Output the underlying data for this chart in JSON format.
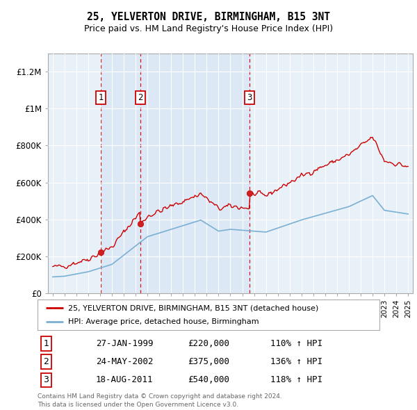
{
  "title": "25, YELVERTON DRIVE, BIRMINGHAM, B15 3NT",
  "subtitle": "Price paid vs. HM Land Registry's House Price Index (HPI)",
  "sale_prices": [
    220000,
    375000,
    540000
  ],
  "sale_labels": [
    "1",
    "2",
    "3"
  ],
  "sale_pct": [
    "110% ↑ HPI",
    "136% ↑ HPI",
    "118% ↑ HPI"
  ],
  "sale_date_labels": [
    "27-JAN-1999",
    "24-MAY-2002",
    "18-AUG-2011"
  ],
  "sale_price_labels": [
    "£220,000",
    "£375,000",
    "£540,000"
  ],
  "legend_line1": "25, YELVERTON DRIVE, BIRMINGHAM, B15 3NT (detached house)",
  "legend_line2": "HPI: Average price, detached house, Birmingham",
  "footer1": "Contains HM Land Registry data © Crown copyright and database right 2024.",
  "footer2": "This data is licensed under the Open Government Licence v3.0.",
  "price_color": "#cc0000",
  "hpi_color": "#7ab0d4",
  "span_color": "#dce8f5",
  "background_color": "#e8f0f8",
  "ylim": [
    0,
    1300000
  ],
  "ylabel_ticks": [
    0,
    200000,
    400000,
    600000,
    800000,
    1000000,
    1200000
  ],
  "ylabel_labels": [
    "£0",
    "£200K",
    "£400K",
    "£600K",
    "£800K",
    "£1M",
    "£1.2M"
  ],
  "sale_years": [
    1999.07,
    2002.39,
    2011.63
  ]
}
